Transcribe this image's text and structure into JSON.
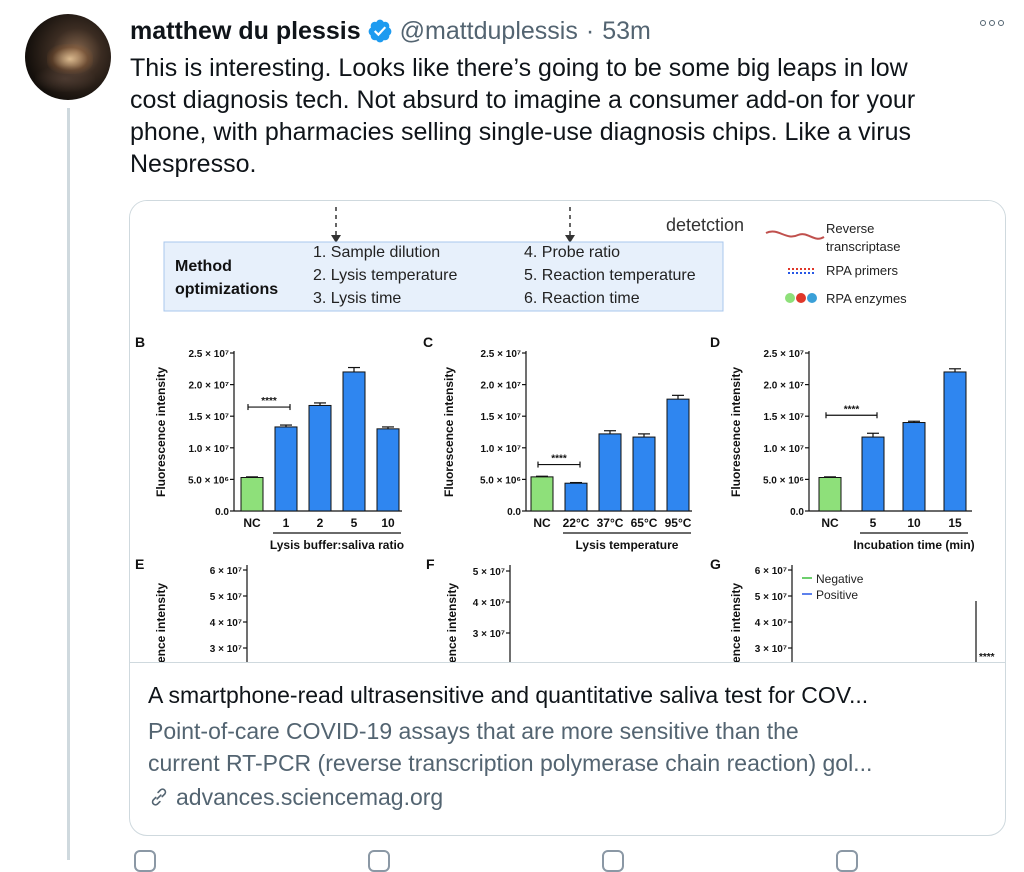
{
  "tweet": {
    "display_name": "matthew du plessis",
    "handle": "@mattduplessis",
    "separator": "·",
    "time": "53m",
    "text_lines": [
      "This is interesting. Looks like there’s going to be some big leaps in low",
      "cost diagnosis tech. Not absurd to imagine a consumer add-on for your",
      "phone, with pharmacies selling single-use diagnosis chips. Like a virus",
      "Nespresso."
    ]
  },
  "card": {
    "title": "A smartphone-read ultrasensitive and quantitative saliva test for COV...",
    "description_lines": [
      "Point-of-care COVID-19 assays that are more sensitive than the",
      "current RT-PCR (reverse transcription polymerase chain reaction) gol..."
    ],
    "domain": "advances.sciencemag.org"
  },
  "figure": {
    "top_labels": {
      "detection": "detetction"
    },
    "method_box": {
      "title_line1": "Method",
      "title_line2": "optimizations",
      "items": [
        "1. Sample dilution",
        "2. Lysis temperature",
        "3. Lysis time",
        "4. Probe ratio",
        "5. Reaction temperature",
        "6. Reaction time"
      ]
    },
    "legend": {
      "rt_line1": "Reverse",
      "rt_line2": "transcriptase",
      "primers": "RPA primers",
      "enzymes": "RPA enzymes"
    },
    "colors": {
      "blue_bar": "#2f86f0",
      "green_bar": "#8ee07a",
      "box_fill": "#e7f0fb",
      "box_border": "#a9c7ec",
      "red": "#e0372a",
      "green_line": "#3cbf3c",
      "blue_line": "#2757e6"
    },
    "lower_panels": {
      "E": {
        "panel_label": "E",
        "ylabel": "ence intensity",
        "ticks": [
          "6 × 10⁷",
          "5 × 10⁷",
          "4 × 10⁷",
          "3 × 10⁷"
        ]
      },
      "F": {
        "panel_label": "F",
        "ylabel": "ence intensity",
        "ticks": [
          "5 × 10⁷",
          "4 × 10⁷",
          "3 × 10⁷"
        ]
      },
      "G": {
        "panel_label": "G",
        "ylabel": "ence intensity",
        "ticks": [
          "6 × 10⁷",
          "5 × 10⁷",
          "4 × 10⁷",
          "3 × 10⁷"
        ],
        "legend": [
          "Negative",
          "Positive"
        ],
        "significance": "****"
      }
    }
  },
  "chart_data": [
    {
      "type": "bar",
      "panel_label": "B",
      "categories": [
        "NC",
        "1",
        "2",
        "5",
        "10"
      ],
      "values": [
        5300000.0,
        13300000.0,
        16700000.0,
        22000000.0,
        13000000.0
      ],
      "errors": [
        100000.0,
        300000.0,
        400000.0,
        700000.0,
        300000.0
      ],
      "xlabel": "Lysis buffer:saliva ratio",
      "ylabel": "Fluorescence intensity",
      "ylim": [
        0,
        25000000.0
      ],
      "yticks": [
        "0.0",
        "5.0 × 10⁶",
        "1.0 × 10⁷",
        "1.5 × 10⁷",
        "2.0 × 10⁷",
        "2.5 × 10⁷"
      ],
      "significance": "****"
    },
    {
      "type": "bar",
      "panel_label": "C",
      "categories": [
        "NC",
        "22°C",
        "37°C",
        "65°C",
        "95°C"
      ],
      "values": [
        5400000.0,
        4400000.0,
        12200000.0,
        11700000.0,
        17700000.0
      ],
      "errors": [
        100000.0,
        100000.0,
        500000.0,
        500000.0,
        600000.0
      ],
      "xlabel": "Lysis temperature",
      "ylabel": "Fluorescence intensity",
      "ylim": [
        0,
        25000000.0
      ],
      "yticks": [
        "0.0",
        "5.0 × 10⁶",
        "1.0 × 10⁷",
        "1.5 × 10⁷",
        "2.0 × 10⁷",
        "2.5 × 10⁷"
      ],
      "significance": "****"
    },
    {
      "type": "bar",
      "panel_label": "D",
      "categories": [
        "NC",
        "5",
        "10",
        "15"
      ],
      "values": [
        5300000.0,
        11700000.0,
        14000000.0,
        22000000.0
      ],
      "errors": [
        100000.0,
        600000.0,
        200000.0,
        500000.0
      ],
      "xlabel": "Incubation time (min)",
      "ylabel": "Fluorescence intensity",
      "ylim": [
        0,
        25000000.0
      ],
      "yticks": [
        "0.0",
        "5.0 × 10⁶",
        "1.0 × 10⁷",
        "1.5 × 10⁷",
        "2.0 × 10⁷",
        "2.5 × 10⁷"
      ],
      "significance": "****"
    }
  ]
}
